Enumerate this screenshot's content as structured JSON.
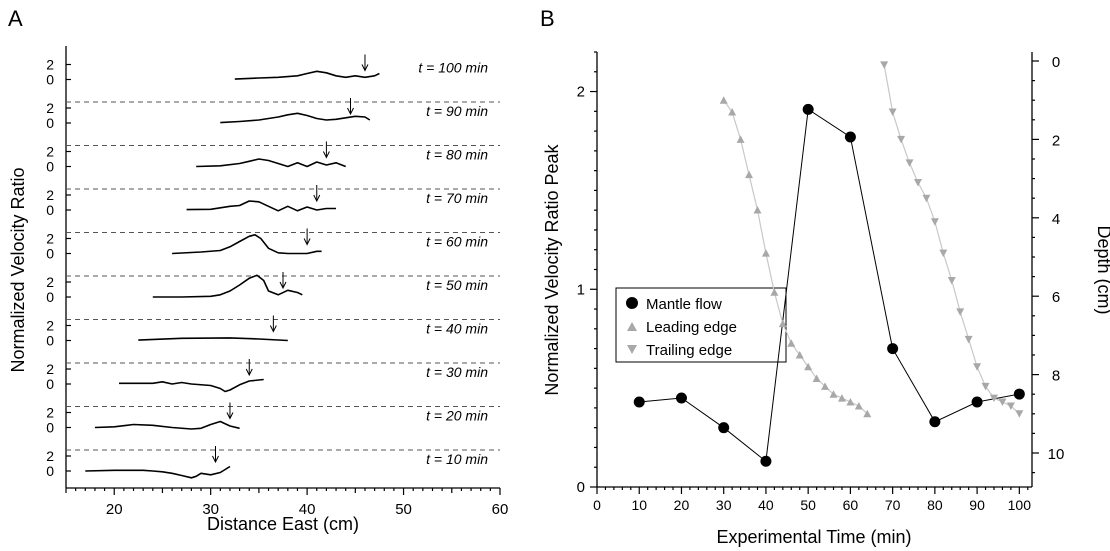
{
  "panels": {
    "a_label": "A",
    "b_label": "B"
  },
  "chart_data": [
    {
      "type": "line",
      "panel": "A",
      "xlabel": "Distance East (cm)",
      "ylabel": "Normalized Velocity Ratio",
      "xlim": [
        15,
        60
      ],
      "x_ticks": [
        "20",
        "30",
        "40",
        "50",
        "60"
      ],
      "y_ticks": [
        "0",
        "2"
      ],
      "series": [
        {
          "name": "t = 100 min",
          "arrow_x": 46.0,
          "x": [
            32.5,
            35,
            37,
            39,
            40,
            41,
            42,
            43,
            44,
            45,
            46,
            47,
            47.5
          ],
          "y": [
            0.05,
            0.2,
            0.3,
            0.5,
            0.8,
            1.1,
            0.9,
            0.5,
            0.3,
            0.5,
            0.3,
            0.5,
            0.8
          ]
        },
        {
          "name": "t = 90 min",
          "arrow_x": 44.5,
          "x": [
            31,
            33,
            35,
            36,
            37,
            38,
            39,
            40,
            41,
            42,
            43,
            44,
            45,
            46,
            46.5
          ],
          "y": [
            0.05,
            0.2,
            0.4,
            0.6,
            0.8,
            1.1,
            1.3,
            1.0,
            0.6,
            0.4,
            0.5,
            0.7,
            0.9,
            0.8,
            0.4
          ]
        },
        {
          "name": "t = 80 min",
          "arrow_x": 42.0,
          "x": [
            28.5,
            31,
            33,
            34,
            35,
            36,
            37,
            38,
            39,
            40,
            41,
            42,
            43,
            44
          ],
          "y": [
            0.0,
            0.1,
            0.4,
            0.7,
            1.0,
            0.8,
            0.4,
            0.0,
            0.5,
            0.0,
            0.6,
            0.2,
            0.5,
            0.0
          ]
        },
        {
          "name": "t = 70 min",
          "arrow_x": 41.0,
          "x": [
            27.5,
            30,
            32,
            33,
            34,
            35,
            36,
            37,
            38,
            39,
            40,
            41,
            42,
            43
          ],
          "y": [
            0.05,
            0.1,
            0.5,
            0.6,
            1.2,
            1.1,
            0.5,
            -0.1,
            0.5,
            -0.1,
            0.4,
            0.0,
            0.2,
            0.2
          ]
        },
        {
          "name": "t = 60 min",
          "arrow_x": 40.0,
          "x": [
            26,
            29,
            31,
            32,
            33,
            34,
            34.6,
            35.2,
            36,
            37,
            38,
            39,
            40,
            41,
            41.5
          ],
          "y": [
            0.0,
            0.2,
            0.4,
            0.9,
            1.6,
            2.3,
            2.5,
            2.0,
            0.7,
            0.1,
            0.0,
            0.0,
            0.0,
            0.3,
            0.3
          ]
        },
        {
          "name": "t = 50 min",
          "arrow_x": 37.5,
          "x": [
            24,
            27,
            30,
            31,
            32,
            33,
            34,
            34.8,
            35.5,
            36,
            37,
            38,
            39,
            39.5
          ],
          "y": [
            0.0,
            0.0,
            0.1,
            0.3,
            0.8,
            1.6,
            2.5,
            2.9,
            2.2,
            0.8,
            0.3,
            0.9,
            0.6,
            0.3
          ]
        },
        {
          "name": "t = 40 min",
          "arrow_x": 36.5,
          "x": [
            22.5,
            27,
            32,
            35,
            38
          ],
          "y": [
            0.05,
            0.3,
            0.35,
            0.2,
            0.0
          ]
        },
        {
          "name": "t = 30 min",
          "arrow_x": 34.0,
          "x": [
            20.5,
            24,
            25,
            26,
            27,
            28,
            30,
            31,
            31.5,
            32,
            33,
            34,
            35.5
          ],
          "y": [
            0.1,
            0.1,
            0.3,
            0.0,
            0.2,
            0.0,
            -0.2,
            -0.6,
            -1.0,
            -0.8,
            -0.1,
            0.4,
            0.6
          ]
        },
        {
          "name": "t = 20 min",
          "arrow_x": 32.0,
          "x": [
            18,
            20,
            22,
            24,
            26,
            28,
            29,
            30,
            31,
            32,
            33
          ],
          "y": [
            0.0,
            0.1,
            0.4,
            0.3,
            0.0,
            -0.2,
            -0.1,
            0.4,
            0.8,
            0.2,
            -0.1
          ]
        },
        {
          "name": "t = 10 min",
          "arrow_x": 30.5,
          "x": [
            17,
            20,
            22,
            23,
            24,
            25,
            26,
            27,
            28,
            28.5,
            29,
            30,
            31,
            32
          ],
          "y": [
            0.0,
            0.1,
            0.1,
            0.1,
            0.0,
            -0.1,
            -0.3,
            -0.6,
            -0.9,
            -0.7,
            -0.3,
            -0.5,
            -0.2,
            0.6
          ]
        }
      ]
    },
    {
      "type": "scatter",
      "panel": "B",
      "xlabel": "Experimental Time (min)",
      "ylabel": "Normalized Velocity Ratio Peak",
      "y2label": "Depth (cm)",
      "xlim": [
        0,
        103
      ],
      "ylim": [
        0,
        2.2
      ],
      "y2lim": [
        0,
        10.9
      ],
      "x_ticks": [
        "0",
        "10",
        "20",
        "30",
        "40",
        "50",
        "60",
        "70",
        "80",
        "90",
        "100"
      ],
      "y_ticks": [
        "0",
        "1",
        "2"
      ],
      "y2_ticks": [
        "0",
        "2",
        "4",
        "6",
        "8",
        "10"
      ],
      "legend_position": "center-left",
      "series": [
        {
          "name": "Mantle flow",
          "axis": "left",
          "marker": "circle",
          "color": "#000000",
          "x": [
            10,
            20,
            30,
            40,
            50,
            60,
            70,
            80,
            90,
            100
          ],
          "y": [
            0.43,
            0.45,
            0.3,
            0.13,
            1.91,
            1.77,
            0.7,
            0.33,
            0.43,
            0.47
          ]
        },
        {
          "name": "Leading edge",
          "axis": "right",
          "marker": "triangle-up",
          "color": "#a8a8a8",
          "x": [
            30,
            32,
            34,
            36,
            38,
            40,
            42,
            44,
            46,
            48,
            50,
            52,
            54,
            56,
            58,
            60,
            62,
            64
          ],
          "y": [
            1.0,
            1.3,
            2.0,
            2.9,
            3.8,
            4.9,
            5.9,
            6.7,
            7.2,
            7.5,
            7.8,
            8.1,
            8.3,
            8.5,
            8.6,
            8.7,
            8.8,
            9.0
          ]
        },
        {
          "name": "Trailing edge",
          "axis": "right",
          "marker": "triangle-down",
          "color": "#a8a8a8",
          "x": [
            68,
            70,
            72,
            74,
            76,
            78,
            80,
            82,
            84,
            86,
            88,
            90,
            92,
            94,
            96,
            98,
            100
          ],
          "y": [
            0.1,
            1.3,
            2.0,
            2.6,
            3.1,
            3.5,
            4.1,
            4.9,
            5.6,
            6.4,
            7.1,
            7.8,
            8.3,
            8.6,
            8.7,
            8.8,
            9.0
          ]
        }
      ]
    }
  ]
}
